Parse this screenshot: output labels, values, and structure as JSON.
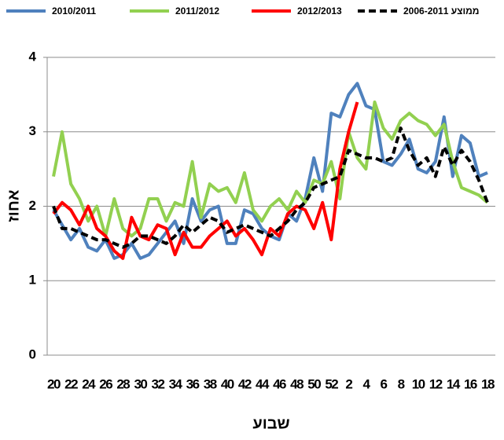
{
  "chart_data": {
    "type": "line",
    "x_label": "שבוע",
    "y_label": "אחוז",
    "categories": [
      "20",
      null,
      "22",
      null,
      "24",
      null,
      "26",
      null,
      "28",
      null,
      "30",
      null,
      "32",
      null,
      "34",
      null,
      "36",
      null,
      "38",
      null,
      "40",
      null,
      "42",
      null,
      "44",
      null,
      "46",
      null,
      "48",
      null,
      "50",
      null,
      "52",
      null,
      "2",
      null,
      "4",
      null,
      "6",
      null,
      "8",
      null,
      "10",
      null,
      "12",
      null,
      "14",
      null,
      "16",
      null,
      "18"
    ],
    "series": [
      {
        "name": "2010/2011",
        "color": "#4f81bd",
        "values": [
          1.95,
          1.75,
          1.55,
          1.7,
          1.45,
          1.4,
          1.55,
          1.3,
          1.35,
          1.5,
          1.3,
          1.35,
          1.5,
          1.65,
          1.8,
          1.5,
          2.1,
          1.8,
          1.95,
          2.0,
          1.5,
          1.5,
          1.95,
          1.9,
          1.7,
          1.6,
          1.55,
          1.9,
          1.8,
          2.1,
          2.65,
          2.2,
          3.25,
          3.2,
          3.5,
          3.65,
          3.35,
          3.3,
          2.6,
          2.55,
          2.7,
          2.9,
          2.5,
          2.45,
          2.6,
          3.2,
          2.4,
          2.95,
          2.85,
          2.4,
          2.45
        ]
      },
      {
        "name": "2011/2012",
        "color": "#92d050",
        "values": [
          2.4,
          3.0,
          2.3,
          2.1,
          1.8,
          2.0,
          1.6,
          2.1,
          1.7,
          1.6,
          1.7,
          2.1,
          2.1,
          1.8,
          2.05,
          2.0,
          2.6,
          1.85,
          2.3,
          2.2,
          2.25,
          2.05,
          2.45,
          1.95,
          1.8,
          2.0,
          2.1,
          1.95,
          2.2,
          2.05,
          2.35,
          2.3,
          2.6,
          2.1,
          3.0,
          2.65,
          2.5,
          3.4,
          3.05,
          2.9,
          3.15,
          3.25,
          3.15,
          3.1,
          2.95,
          3.1,
          2.6,
          2.25,
          2.2,
          2.15,
          2.05
        ]
      },
      {
        "name": "2012/2013",
        "color": "#ff0000",
        "values": [
          1.9,
          2.05,
          1.95,
          1.75,
          2.0,
          1.7,
          1.6,
          1.4,
          1.3,
          1.85,
          1.6,
          1.55,
          1.75,
          1.7,
          1.35,
          1.65,
          1.45,
          1.45,
          1.6,
          1.7,
          1.8,
          1.6,
          1.7,
          1.55,
          1.35,
          1.7,
          1.6,
          1.9,
          2.0,
          1.95,
          1.7,
          2.05,
          1.55,
          2.5,
          3.0,
          3.4,
          null,
          null,
          null,
          null,
          null,
          null,
          null,
          null,
          null,
          null,
          null,
          null,
          null,
          null,
          null
        ]
      },
      {
        "name": "ממוצע 2006-2011",
        "color": "#000000",
        "dashed": true,
        "values": [
          2.0,
          1.7,
          1.7,
          1.65,
          1.6,
          1.55,
          1.55,
          1.5,
          1.45,
          1.5,
          1.6,
          1.6,
          1.55,
          1.5,
          1.6,
          1.75,
          1.65,
          1.75,
          1.85,
          1.8,
          1.65,
          1.7,
          1.75,
          1.7,
          1.65,
          1.6,
          1.7,
          1.8,
          1.95,
          2.05,
          2.25,
          2.3,
          2.35,
          2.4,
          2.75,
          2.7,
          2.65,
          2.65,
          2.6,
          2.65,
          3.05,
          2.75,
          2.55,
          2.65,
          2.4,
          2.8,
          2.55,
          2.75,
          2.6,
          2.35,
          2.05
        ]
      }
    ],
    "ylim": [
      0,
      4
    ],
    "yticks": [
      0,
      1,
      2,
      3,
      4
    ],
    "grid": true,
    "legend": "top"
  }
}
